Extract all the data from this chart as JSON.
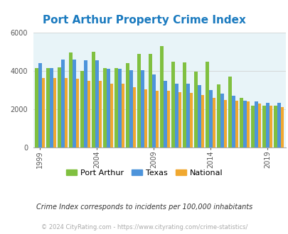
{
  "title": "Port Arthur Property Crime Index",
  "years": [
    1999,
    2000,
    2001,
    2002,
    2003,
    2004,
    2005,
    2006,
    2007,
    2008,
    2009,
    2010,
    2011,
    2012,
    2013,
    2014,
    2015,
    2016,
    2017,
    2018,
    2019,
    2020
  ],
  "port_arthur": [
    4150,
    4150,
    4200,
    4950,
    4000,
    5000,
    4150,
    4150,
    4400,
    4900,
    4900,
    5300,
    4500,
    4450,
    3950,
    4500,
    3300,
    3700,
    2600,
    2200,
    2200,
    2200
  ],
  "texas": [
    4400,
    4150,
    4600,
    4600,
    4550,
    4550,
    4100,
    4100,
    4050,
    4050,
    3800,
    3500,
    3350,
    3350,
    3250,
    3000,
    2800,
    2700,
    2450,
    2400,
    2350,
    2350
  ],
  "national": [
    3650,
    3650,
    3650,
    3600,
    3500,
    3500,
    3350,
    3350,
    3150,
    3050,
    2950,
    2950,
    2900,
    2850,
    2750,
    2600,
    2500,
    2450,
    2400,
    2300,
    2200,
    2100
  ],
  "bar_colors": {
    "port_arthur": "#80c040",
    "texas": "#4d94db",
    "national": "#f0a830"
  },
  "background_color": "#e8f4f8",
  "title_color": "#1a7abf",
  "ylim": [
    0,
    6000
  ],
  "yticks": [
    0,
    2000,
    4000,
    6000
  ],
  "xlabel_ticks": [
    1999,
    2004,
    2009,
    2014,
    2019
  ],
  "subtitle": "Crime Index corresponds to incidents per 100,000 inhabitants",
  "footer": "© 2024 CityRating.com - https://www.cityrating.com/crime-statistics/",
  "legend_labels": [
    "Port Arthur",
    "Texas",
    "National"
  ],
  "grid_color": "#cccccc"
}
